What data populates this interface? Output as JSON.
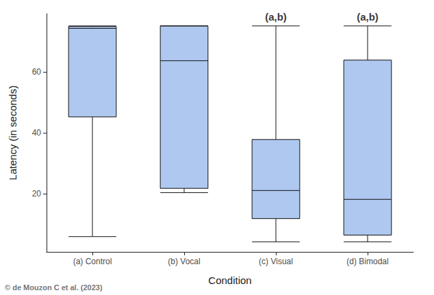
{
  "chart_data": {
    "type": "boxplot",
    "x_label": "Condition",
    "y_label": "Latency (in seconds)",
    "categories": [
      "(a) Control",
      "(b) Vocal",
      "(c) Visual",
      "(d) Bimodal"
    ],
    "values": [
      [
        6,
        45.2,
        74.2,
        74.8,
        75
      ],
      [
        20.4,
        21.8,
        63.6,
        75,
        75
      ],
      [
        4.3,
        11.9,
        21.1,
        37.8,
        75
      ],
      [
        4.3,
        6.5,
        18.2,
        63.8,
        75
      ]
    ],
    "color": "#aec8f0",
    "ylim": [
      1,
      79
    ],
    "yticks": [
      20,
      40,
      60
    ],
    "grid": false,
    "annotations": [
      {
        "category": "(c) Visual",
        "text": "(a,b)"
      },
      {
        "category": "(d) Bimodal",
        "text": "(a,b)"
      }
    ],
    "credit": "© de Mouzon C et al. (2023)"
  }
}
